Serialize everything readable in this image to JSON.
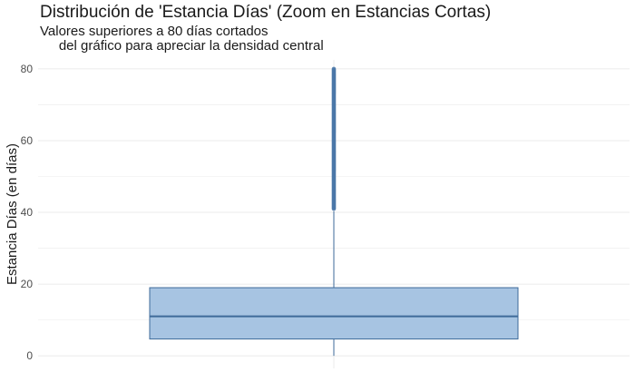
{
  "chart_data": {
    "type": "boxplot",
    "title": "Distribución de 'Estancia Días' (Zoom en Estancias Cortas)",
    "subtitle": "Valores superiores a 80 días cortados\n     del gráfico para apreciar la densidad central",
    "xlabel": "",
    "ylabel": "Estancia Días (en días)",
    "ylim": [
      -3.5,
      82.5
    ],
    "yticks": [
      0,
      20,
      40,
      60,
      80
    ],
    "grid": true,
    "box": {
      "min": 0,
      "q1": 4.7,
      "median": 11,
      "q3": 19,
      "whisker_high": 40.3
    },
    "outliers": {
      "from": 41,
      "to": 80,
      "step": 0.25
    },
    "colors": {
      "fill": "#a7c4e2",
      "stroke": "#3e6a99",
      "outlier": "#4a77a8",
      "grid": "#ebebeb"
    }
  }
}
